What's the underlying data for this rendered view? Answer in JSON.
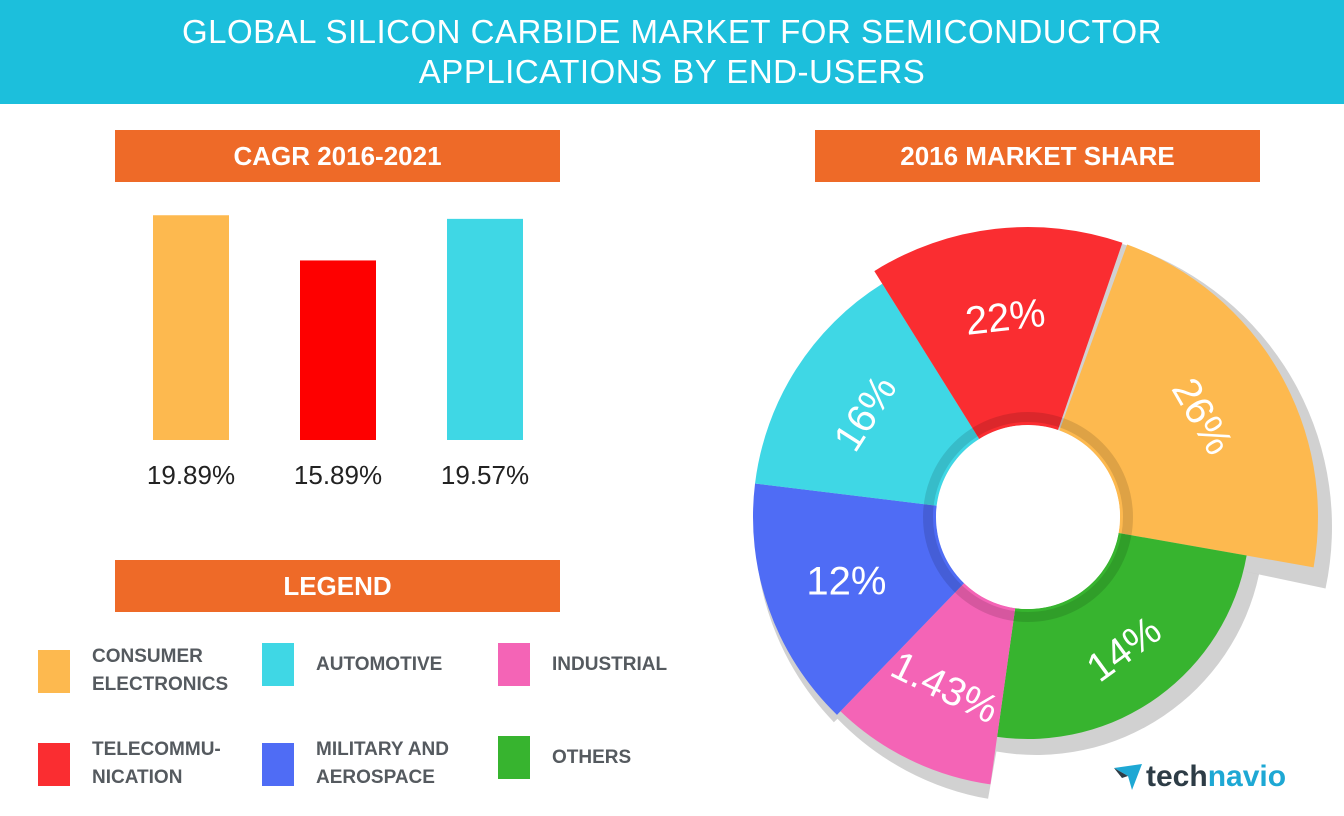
{
  "header": {
    "title_line1": "GLOBAL SILICON CARBIDE MARKET FOR SEMICONDUCTOR",
    "title_line2": "APPLICATIONS BY END-USERS"
  },
  "cagr_title": "CAGR 2016-2021",
  "share_title": "2016 MARKET SHARE",
  "legend_title": "LEGEND",
  "legend": [
    {
      "label": "CONSUMER\nELECTRONICS",
      "color": "#fdb94f"
    },
    {
      "label": "AUTOMOTIVE",
      "color": "#3fd7e5"
    },
    {
      "label": "INDUSTRIAL",
      "color": "#f464b6"
    },
    {
      "label": "TELECOMMU-\nNICATION",
      "color": "#fa2d31"
    },
    {
      "label": "MILITARY AND\nAEROSPACE",
      "color": "#4f6cf5"
    },
    {
      "label": "OTHERS",
      "color": "#37b42f"
    }
  ],
  "brand": {
    "part1": "tech",
    "part2": "navio"
  },
  "chart_data": [
    {
      "type": "bar",
      "title": "CAGR 2016-2021",
      "categories": [
        "Consumer Electronics",
        "Telecommunication",
        "Automotive"
      ],
      "values": [
        19.89,
        15.89,
        19.57
      ],
      "value_labels": [
        "19.89%",
        "15.89%",
        "19.57%"
      ],
      "colors": [
        "#fdb94f",
        "#fe0000",
        "#3fd7e5"
      ],
      "ylim": [
        0,
        20
      ]
    },
    {
      "type": "pie",
      "title": "2016 MARKET SHARE",
      "slices": [
        {
          "category": "Consumer Electronics",
          "label": "26%",
          "color": "#fdb94f"
        },
        {
          "category": "Others",
          "label": "14%",
          "color": "#37b42f"
        },
        {
          "category": "Industrial",
          "label": "1.43%",
          "color": "#f464b6"
        },
        {
          "category": "Military and Aerospace",
          "label": "12%",
          "color": "#4f6cf5"
        },
        {
          "category": "Automotive",
          "label": "16%",
          "color": "#3fd7e5"
        },
        {
          "category": "Telecommunication",
          "label": "22%",
          "color": "#fa2d31"
        }
      ]
    }
  ]
}
